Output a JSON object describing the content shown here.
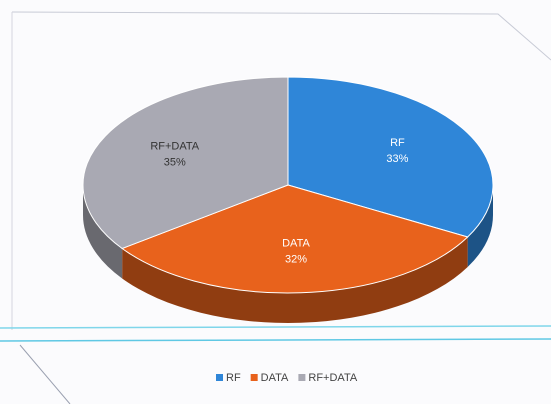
{
  "chart_data": {
    "type": "pie",
    "categories": [
      "RF",
      "DATA",
      "RF+DATA"
    ],
    "values": [
      33,
      32,
      35
    ],
    "value_labels": [
      "33%",
      "32%",
      "35%"
    ],
    "colors": [
      "#2f86d8",
      "#e8621c",
      "#a9a9b3"
    ],
    "legend": "bottom"
  }
}
